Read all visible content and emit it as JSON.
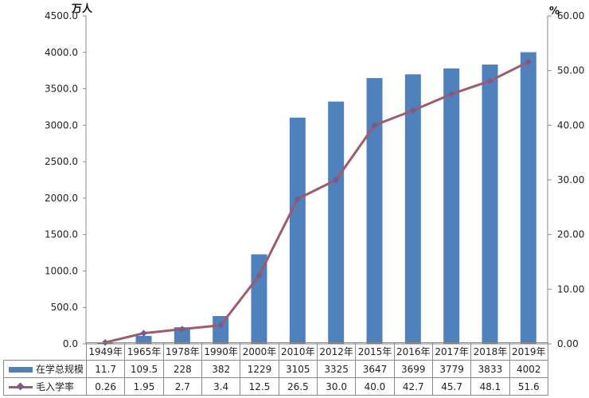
{
  "chart_data": {
    "type": "bar+line",
    "title": "",
    "categories": [
      "1949年",
      "1965年",
      "1978年",
      "1990年",
      "2000年",
      "2010年",
      "2012年",
      "2015年",
      "2016年",
      "2017年",
      "2018年",
      "2019年"
    ],
    "series": [
      {
        "name": "在学总规模",
        "type": "bar",
        "axis": "left",
        "color": "#4f81bd",
        "values": [
          11.7,
          109.5,
          228,
          382,
          1229,
          3105,
          3325,
          3647,
          3699,
          3779,
          3833,
          4002
        ],
        "labels": [
          "11.7",
          "109.5",
          "228",
          "382",
          "1229",
          "3105",
          "3325",
          "3647",
          "3699",
          "3779",
          "3833",
          "4002"
        ]
      },
      {
        "name": "毛入学率",
        "type": "line",
        "axis": "right",
        "color": "#a05a6a",
        "marker": "diamond",
        "values": [
          0.26,
          1.95,
          2.7,
          3.4,
          12.5,
          26.5,
          30.0,
          40.0,
          42.7,
          45.7,
          48.1,
          51.6
        ],
        "labels": [
          "0.26",
          "1.95",
          "2.7",
          "3.4",
          "12.5",
          "26.5",
          "30.0",
          "40.0",
          "42.7",
          "45.7",
          "48.1",
          "51.6"
        ]
      }
    ],
    "ylabel": "万人",
    "y2label": "%",
    "ylim": [
      0,
      4500
    ],
    "y2lim": [
      0,
      60
    ],
    "yticks": [
      "0.0",
      "500.0",
      "1000.0",
      "1500.0",
      "2000.0",
      "2500.0",
      "3000.0",
      "3500.0",
      "4000.0",
      "4500.0"
    ],
    "y2ticks": [
      "0.00",
      "10.00",
      "20.00",
      "30.00",
      "40.00",
      "50.00",
      "60.00"
    ],
    "grid": false,
    "legend_position": "data-table"
  }
}
